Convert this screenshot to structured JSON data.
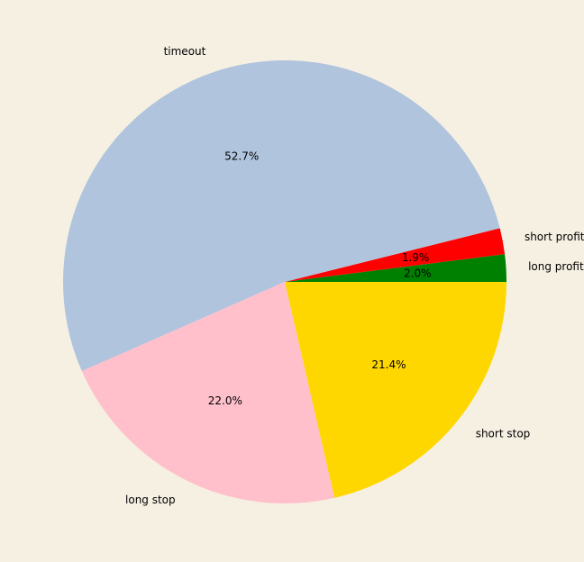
{
  "chart_data": {
    "type": "pie",
    "title": "",
    "start_angle_deg": 0,
    "direction": "counterclockwise",
    "slices": [
      {
        "label": "long profit",
        "value": 2.0,
        "pct_label": "2.0%",
        "color": "#008000"
      },
      {
        "label": "short profit",
        "value": 1.9,
        "pct_label": "1.9%",
        "color": "#ff0000"
      },
      {
        "label": "timeout",
        "value": 52.7,
        "pct_label": "52.7%",
        "color": "#b0c4de"
      },
      {
        "label": "long stop",
        "value": 22.0,
        "pct_label": "22.0%",
        "color": "#ffc0cb"
      },
      {
        "label": "short stop",
        "value": 21.4,
        "pct_label": "21.4%",
        "color": "#ffd700"
      }
    ]
  },
  "colors": {
    "background": "#f6f0e3"
  }
}
